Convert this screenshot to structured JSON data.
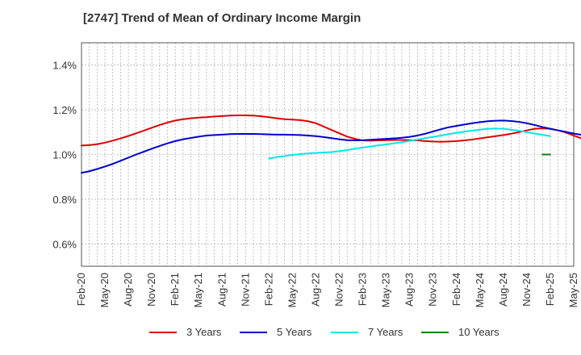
{
  "chart_data": {
    "type": "line",
    "title": "[2747]  Trend of Mean of Ordinary Income Margin",
    "xlabel": "",
    "ylabel": "",
    "x_ticks": [
      "Feb-20",
      "May-20",
      "Aug-20",
      "Nov-20",
      "Feb-21",
      "May-21",
      "Aug-21",
      "Nov-21",
      "Feb-22",
      "May-22",
      "Aug-22",
      "Nov-22",
      "Feb-23",
      "May-23",
      "Aug-23",
      "Nov-23",
      "Feb-24",
      "May-24",
      "Aug-24",
      "Nov-24",
      "Feb-25",
      "May-25"
    ],
    "y_ticks": [
      "0.6%",
      "0.8%",
      "1.0%",
      "1.2%",
      "1.4%"
    ],
    "y_tick_values": [
      0.6,
      0.8,
      1.0,
      1.2,
      1.4
    ],
    "ylim": [
      0.5,
      1.5
    ],
    "grid": true,
    "legend_position": "bottom",
    "series": [
      {
        "name": "3 Years",
        "color": "#e00000",
        "start": "Feb-20",
        "values": [
          1.04,
          1.042,
          1.046,
          1.053,
          1.062,
          1.072,
          1.083,
          1.095,
          1.107,
          1.12,
          1.132,
          1.143,
          1.152,
          1.158,
          1.162,
          1.165,
          1.167,
          1.17,
          1.172,
          1.174,
          1.175,
          1.175,
          1.174,
          1.171,
          1.167,
          1.162,
          1.158,
          1.156,
          1.154,
          1.149,
          1.14,
          1.125,
          1.11,
          1.095,
          1.08,
          1.07,
          1.063,
          1.062,
          1.063,
          1.064,
          1.065,
          1.065,
          1.064,
          1.063,
          1.06,
          1.058,
          1.057,
          1.058,
          1.06,
          1.063,
          1.067,
          1.072,
          1.077,
          1.082,
          1.087,
          1.093,
          1.1,
          1.108,
          1.115,
          1.117,
          1.115,
          1.108,
          1.098,
          1.085,
          1.072,
          1.058,
          1.043,
          1.03
        ]
      },
      {
        "name": "5 Years",
        "color": "#0000cc",
        "start": "Feb-20",
        "values": [
          0.918,
          0.925,
          0.935,
          0.946,
          0.958,
          0.972,
          0.986,
          1.0,
          1.013,
          1.026,
          1.038,
          1.05,
          1.06,
          1.068,
          1.074,
          1.08,
          1.085,
          1.087,
          1.089,
          1.091,
          1.092,
          1.092,
          1.092,
          1.091,
          1.09,
          1.089,
          1.089,
          1.088,
          1.087,
          1.085,
          1.082,
          1.078,
          1.073,
          1.068,
          1.064,
          1.063,
          1.064,
          1.066,
          1.068,
          1.07,
          1.072,
          1.075,
          1.079,
          1.085,
          1.093,
          1.103,
          1.113,
          1.122,
          1.128,
          1.134,
          1.14,
          1.145,
          1.149,
          1.151,
          1.152,
          1.15,
          1.146,
          1.14,
          1.132,
          1.123,
          1.115,
          1.108,
          1.101,
          1.094,
          1.088,
          1.082
        ]
      },
      {
        "name": "7 Years",
        "color": "#00e8e8",
        "start": "Feb-22",
        "values": [
          0.982,
          0.988,
          0.993,
          0.998,
          1.002,
          1.005,
          1.007,
          1.009,
          1.011,
          1.015,
          1.02,
          1.026,
          1.031,
          1.036,
          1.041,
          1.045,
          1.05,
          1.055,
          1.061,
          1.067,
          1.073,
          1.079,
          1.085,
          1.091,
          1.097,
          1.102,
          1.107,
          1.111,
          1.115,
          1.116,
          1.115,
          1.111,
          1.106,
          1.1,
          1.094,
          1.088,
          1.082
        ]
      },
      {
        "name": "10 Years",
        "color": "#1a7a1a",
        "start": "Jan-25",
        "values": [
          1.0,
          1.0
        ]
      }
    ]
  }
}
